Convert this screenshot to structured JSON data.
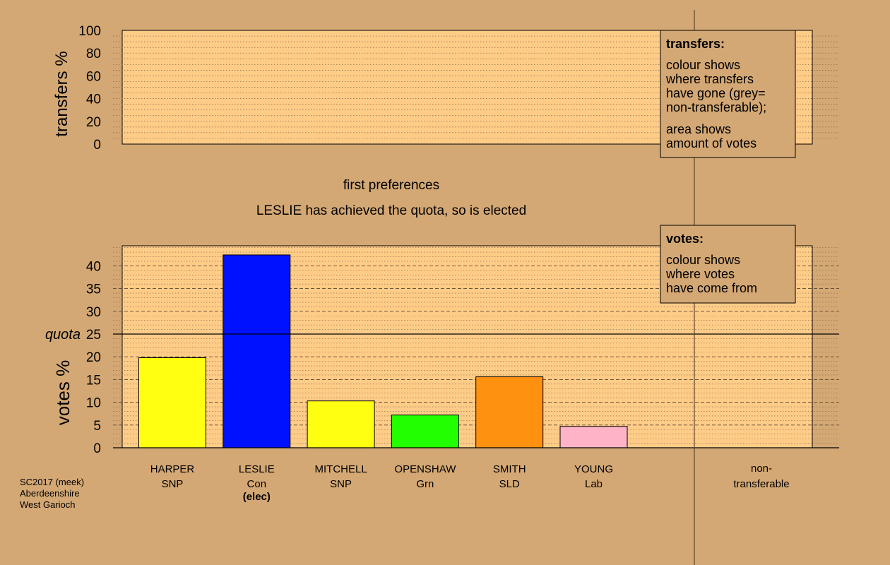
{
  "chart_data": [
    {
      "type": "area",
      "ylabel": "transfers %",
      "ylim": [
        0,
        100
      ],
      "y_ticks": [
        0,
        20,
        40,
        60,
        80,
        100
      ],
      "grid": true,
      "legend": {
        "title": "transfers:",
        "lines": [
          "colour shows",
          "where transfers",
          "have gone (grey=",
          "non-transferable);"
        ],
        "lines2": [
          "area shows",
          "amount of votes"
        ]
      }
    },
    {
      "type": "bar",
      "title": "first preferences",
      "subtitle": "LESLIE has achieved the quota, so is elected",
      "ylabel": "votes %",
      "ylim": [
        0,
        45
      ],
      "y_ticks": [
        0,
        5,
        10,
        15,
        20,
        25,
        30,
        35,
        40
      ],
      "quota": 25,
      "quota_label": "quota",
      "grid": true,
      "categories": [
        {
          "name": "HARPER",
          "party": "SNP",
          "note": ""
        },
        {
          "name": "LESLIE",
          "party": "Con",
          "note": "(elec)"
        },
        {
          "name": "MITCHELL",
          "party": "SNP",
          "note": ""
        },
        {
          "name": "OPENSHAW",
          "party": "Grn",
          "note": ""
        },
        {
          "name": "SMITH",
          "party": "SLD",
          "note": ""
        },
        {
          "name": "YOUNG",
          "party": "Lab",
          "note": ""
        }
      ],
      "values": [
        19.8,
        42.4,
        10.3,
        7.2,
        15.6,
        4.7
      ],
      "colors": [
        "#ffff11",
        "#0011ff",
        "#ffff11",
        "#22ff00",
        "#ff9111",
        "#ffb3c6"
      ],
      "extra_category": [
        "non-",
        "transferable"
      ],
      "legend": {
        "title": "votes:",
        "lines": [
          "colour shows",
          "where votes",
          "have come from"
        ]
      }
    }
  ],
  "footer": [
    "SC2017 (meek)",
    "Aberdeenshire",
    "West Garioch"
  ]
}
